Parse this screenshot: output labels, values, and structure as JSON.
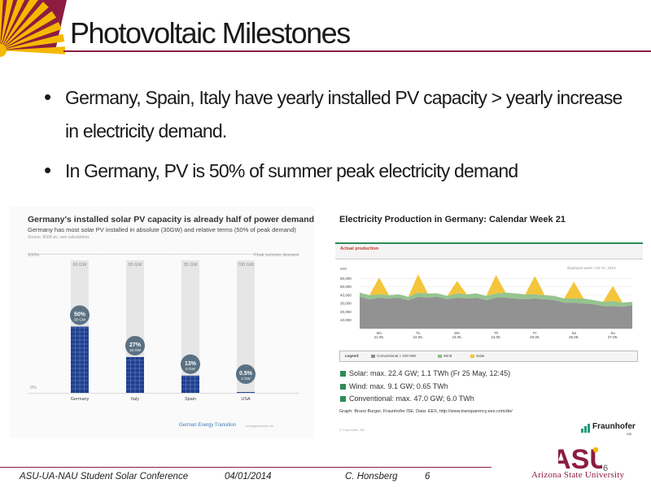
{
  "slide": {
    "title": "Photovoltaic Milestones",
    "bullets": [
      "Germany, Spain, Italy have yearly installed PV capacity > yearly increase in electricity demand.",
      "In Germany, PV is 50% of summer peak electricity demand"
    ],
    "accent_color": "#8c1d40",
    "sun_color": "#f5b800",
    "bullet_icon": "bullet-dot-icon"
  },
  "left_figure": {
    "title": "Germany's installed solar PV capacity is already half of power demand",
    "subtitle": "Germany has most solar PV installed in absolute (30GW) and relative terms (50% of peak demand)",
    "source": "Source: BSW pv, own calculations",
    "axis_top_label": "100%",
    "axis_bottom_label": "0%",
    "peak_label": "Peak summer demand",
    "footer_brand": "German Energy Transition",
    "footer_site": "energytransition.de",
    "chart_data": {
      "type": "bar",
      "title": "Germany's installed solar PV capacity is already half of power demand",
      "categories": [
        "Germany",
        "Italy",
        "Spain",
        "USA"
      ],
      "demand_labels": [
        "60 GW",
        "55 GW",
        "35 GW",
        "700 GW"
      ],
      "pct_labels": [
        "50%",
        "27%",
        "13%",
        "0.5%"
      ],
      "gw_labels": [
        "30 GW",
        "15 GW",
        "5 GW",
        "4 GW"
      ],
      "values": [
        50,
        27,
        13,
        0.5
      ],
      "ylim": [
        0,
        100
      ],
      "bar_color": "#1f3f8f",
      "bg_bar_color": "#e6e6e6",
      "bubble_color": "#5a7183"
    }
  },
  "right_figure": {
    "title": "Electricity Production in Germany: Calendar Week 21",
    "header_label": "Actual production",
    "week_label": "displayed week: CW 21; 2013",
    "legend_title": "Legend:",
    "legend_items": [
      {
        "label": "Conventional > 100 MW",
        "color": "#8c8c8c"
      },
      {
        "label": "Wind",
        "color": "#8fc189"
      },
      {
        "label": "Solar",
        "color": "#f3c230"
      }
    ],
    "stats": [
      "Solar: max. 22.4 GW; 1.1 TWh (Fr 25 May, 12:45)",
      "Wind: max. 9.1 GW; 0.65 TWh",
      "Conventional: max. 47.0 GW;  6.0 TWh"
    ],
    "credit": "Graph: Bruno Burger, Fraunhofer ISE; Data: EEX, http://www.transparency.eex.com/de/",
    "credit_small": "© Fraunhofer ISE",
    "logo_text": "Fraunhofer",
    "logo_sub": "ISE",
    "chart_data": {
      "type": "area",
      "title": "Actual production",
      "ylabel": "MW",
      "y_ticks": [
        "60,000",
        "50,000",
        "40,000",
        "30,000",
        "20,000",
        "10,000"
      ],
      "ylim": [
        0,
        70000
      ],
      "x_categories": [
        "Mo 21.05.",
        "Tu 22.05.",
        "We 23.05.",
        "Th 24.05.",
        "Fr 25.05.",
        "Sa 26.05.",
        "Su 27.05."
      ],
      "x_ticks": [
        {
          "day": "Mo",
          "date": "21.05."
        },
        {
          "day": "Tu",
          "date": "22.05."
        },
        {
          "day": "We",
          "date": "23.05."
        },
        {
          "day": "Th",
          "date": "24.05."
        },
        {
          "day": "Fr",
          "date": "25.05."
        },
        {
          "day": "Sa",
          "date": "26.05."
        },
        {
          "day": "Su",
          "date": "27.05."
        }
      ],
      "x": [
        0,
        6,
        12,
        18,
        24,
        30,
        36,
        42,
        48,
        54,
        60,
        66,
        72,
        78,
        84,
        90,
        96,
        102,
        108,
        114,
        120,
        126,
        132,
        138,
        144,
        150,
        156,
        162,
        168
      ],
      "series": [
        {
          "name": "Conventional > 100 MW",
          "values": [
            38000,
            35000,
            37000,
            36000,
            37000,
            34000,
            38000,
            37000,
            38000,
            35000,
            37000,
            36000,
            37000,
            34000,
            37000,
            37000,
            36000,
            35000,
            36000,
            35000,
            34000,
            31000,
            31000,
            30000,
            29000,
            27000,
            27000,
            26000,
            28000
          ]
        },
        {
          "name": "Wind",
          "values": [
            5000,
            5000,
            4000,
            4000,
            4000,
            4000,
            5000,
            5000,
            4000,
            4000,
            5000,
            5000,
            5000,
            5000,
            5000,
            6000,
            6000,
            6000,
            5000,
            5000,
            5000,
            5000,
            5000,
            6000,
            5000,
            5000,
            6000,
            5000,
            4000
          ]
        },
        {
          "name": "Solar",
          "values": [
            0,
            0,
            20000,
            0,
            0,
            0,
            22000,
            0,
            0,
            0,
            15000,
            0,
            0,
            0,
            22000,
            0,
            0,
            0,
            22000,
            0,
            0,
            0,
            20000,
            0,
            0,
            0,
            18000,
            0,
            0
          ]
        }
      ]
    }
  },
  "footer": {
    "conference": "ASU-UA-NAU Student Solar Conference",
    "date": "04/01/2014",
    "author": "C. Honsberg",
    "page": "6",
    "page_corner": "6",
    "university": "Arizona State University",
    "university_initials": "ASU"
  }
}
